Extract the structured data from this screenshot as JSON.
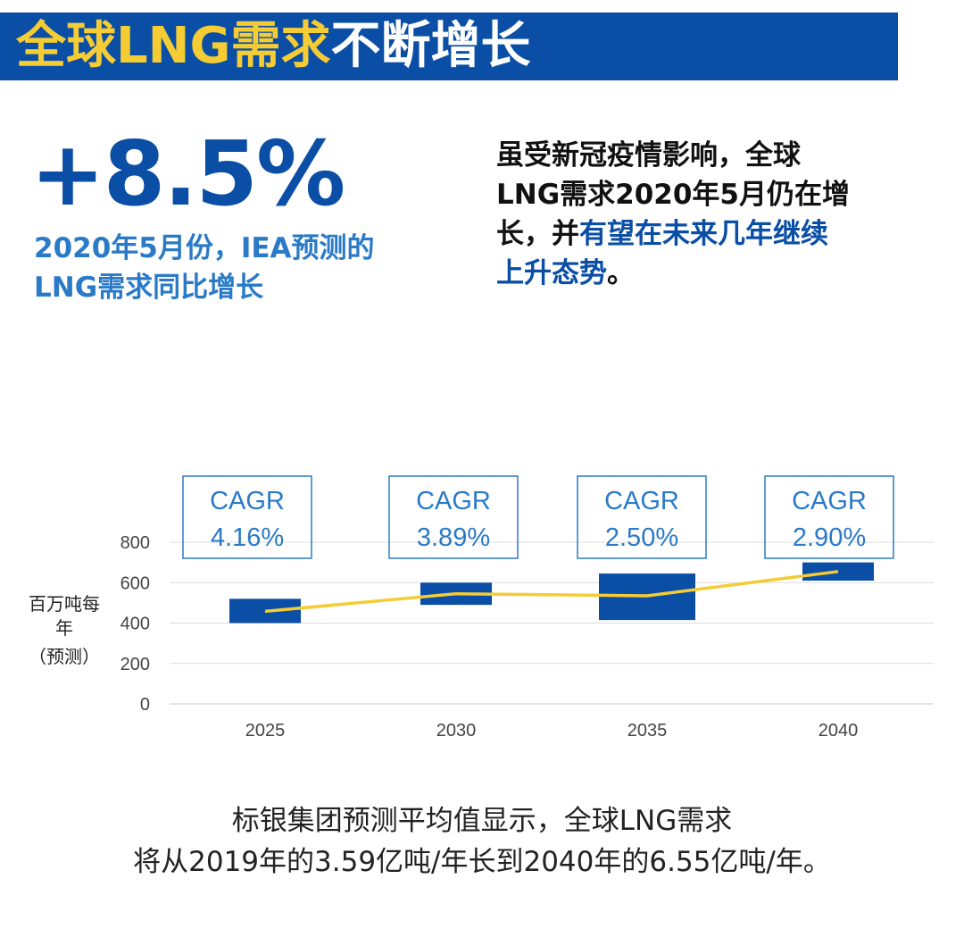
{
  "header": {
    "title_highlight": "全球LNG需求",
    "title_rest": "不断增长"
  },
  "stat": {
    "value": "+8.5%",
    "desc_line1": "2020年5月份，IEA预测的",
    "desc_line2": "LNG需求同比增长"
  },
  "intro": {
    "line1": "虽受新冠疫情影响，全球",
    "line2": "LNG需求2020年5月仍在增",
    "line3_plain": "长，并",
    "line3_blue": "有望在未来几年继续",
    "line4_blue": "上升态势",
    "line4_end": "。"
  },
  "colors": {
    "brand_blue": "#0a4ea6",
    "accent_yellow": "#f5cc34",
    "stat_blue": "#2a7ac7",
    "box_border": "#2a7ac7"
  },
  "chart_data": {
    "type": "bar",
    "categories": [
      "2025",
      "2030",
      "2035",
      "2040"
    ],
    "ylabel_lines": [
      "百万吨每",
      "年",
      "（预测）"
    ],
    "ylim": [
      0,
      800
    ],
    "yticks": [
      "0",
      "200",
      "400",
      "600",
      "800"
    ],
    "grid": true,
    "series": [
      {
        "type": "range-bar",
        "low": [
          400,
          490,
          415,
          610
        ],
        "high": [
          520,
          600,
          645,
          700
        ]
      },
      {
        "type": "line",
        "values": [
          458,
          545,
          535,
          655
        ]
      }
    ],
    "annotations": [
      {
        "line1": "CAGR",
        "line2": "4.16%"
      },
      {
        "line1": "CAGR",
        "line2": "3.89%"
      },
      {
        "line1": "CAGR",
        "line2": "2.50%"
      },
      {
        "line1": "CAGR",
        "line2": "2.90%"
      }
    ]
  },
  "footnote": {
    "line1": "标银集团预测平均值显示，全球LNG需求",
    "line2": "将从2019年的3.59亿吨/年长到2040年的6.55亿吨/年。"
  }
}
